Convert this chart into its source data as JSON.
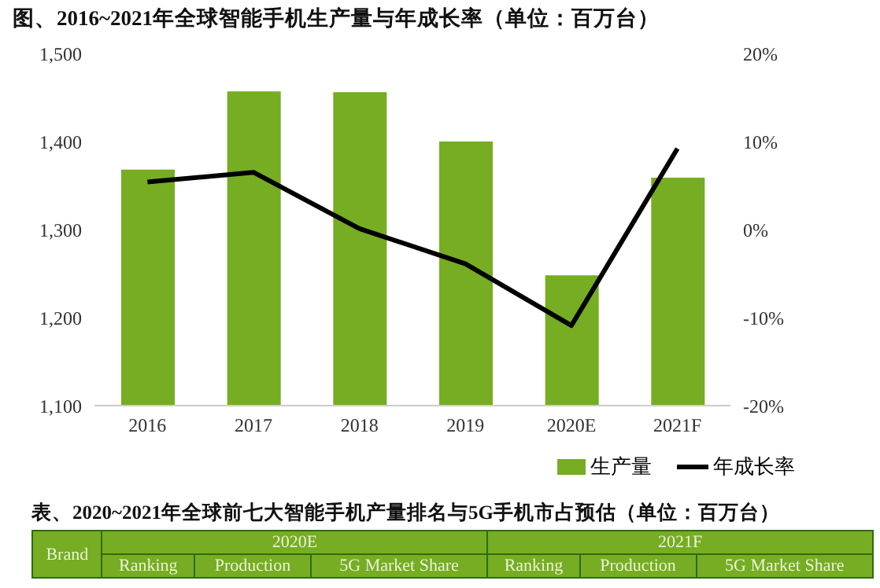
{
  "chart_data": {
    "type": "bar",
    "title": "图、2016~2021年全球智能手机生产量与年成长率（单位：百万台）",
    "categories": [
      "2016",
      "2017",
      "2018",
      "2019",
      "2020E",
      "2021F"
    ],
    "series": [
      {
        "name": "生产量",
        "color": "#76ad22",
        "values": [
          1368,
          1457,
          1456,
          1400,
          1248,
          1359
        ]
      },
      {
        "name": "年成长率",
        "type": "line",
        "color": "#000000",
        "axis": "y2",
        "values": [
          5.4,
          6.5,
          0.1,
          -3.9,
          -10.9,
          9.2
        ]
      }
    ],
    "ylim": [
      1100,
      1500
    ],
    "yticks": [
      {
        "value": 1100,
        "label": "1,100"
      },
      {
        "value": 1200,
        "label": "1,200"
      },
      {
        "value": 1300,
        "label": "1,300"
      },
      {
        "value": 1400,
        "label": "1,400"
      },
      {
        "value": 1500,
        "label": "1,500"
      }
    ],
    "y2lim": [
      -20,
      20
    ],
    "y2ticks": [
      {
        "value": -20,
        "label": "-20%"
      },
      {
        "value": -10,
        "label": "-10%"
      },
      {
        "value": 0,
        "label": "0%"
      },
      {
        "value": 10,
        "label": "10%"
      },
      {
        "value": 20,
        "label": "20%"
      }
    ],
    "legend": "bottom",
    "grid": false,
    "marker": "none",
    "line_style": "solid",
    "annotations": [
      "表、2020~2021年全球前七大智能手机产量排名与5G手机市占预估（单位：百万台）",
      "Brand",
      "2020E",
      "Ranking",
      "Production",
      "5G Market Share",
      "2021F",
      "Ranking",
      "Production",
      "5G Market Share"
    ]
  }
}
